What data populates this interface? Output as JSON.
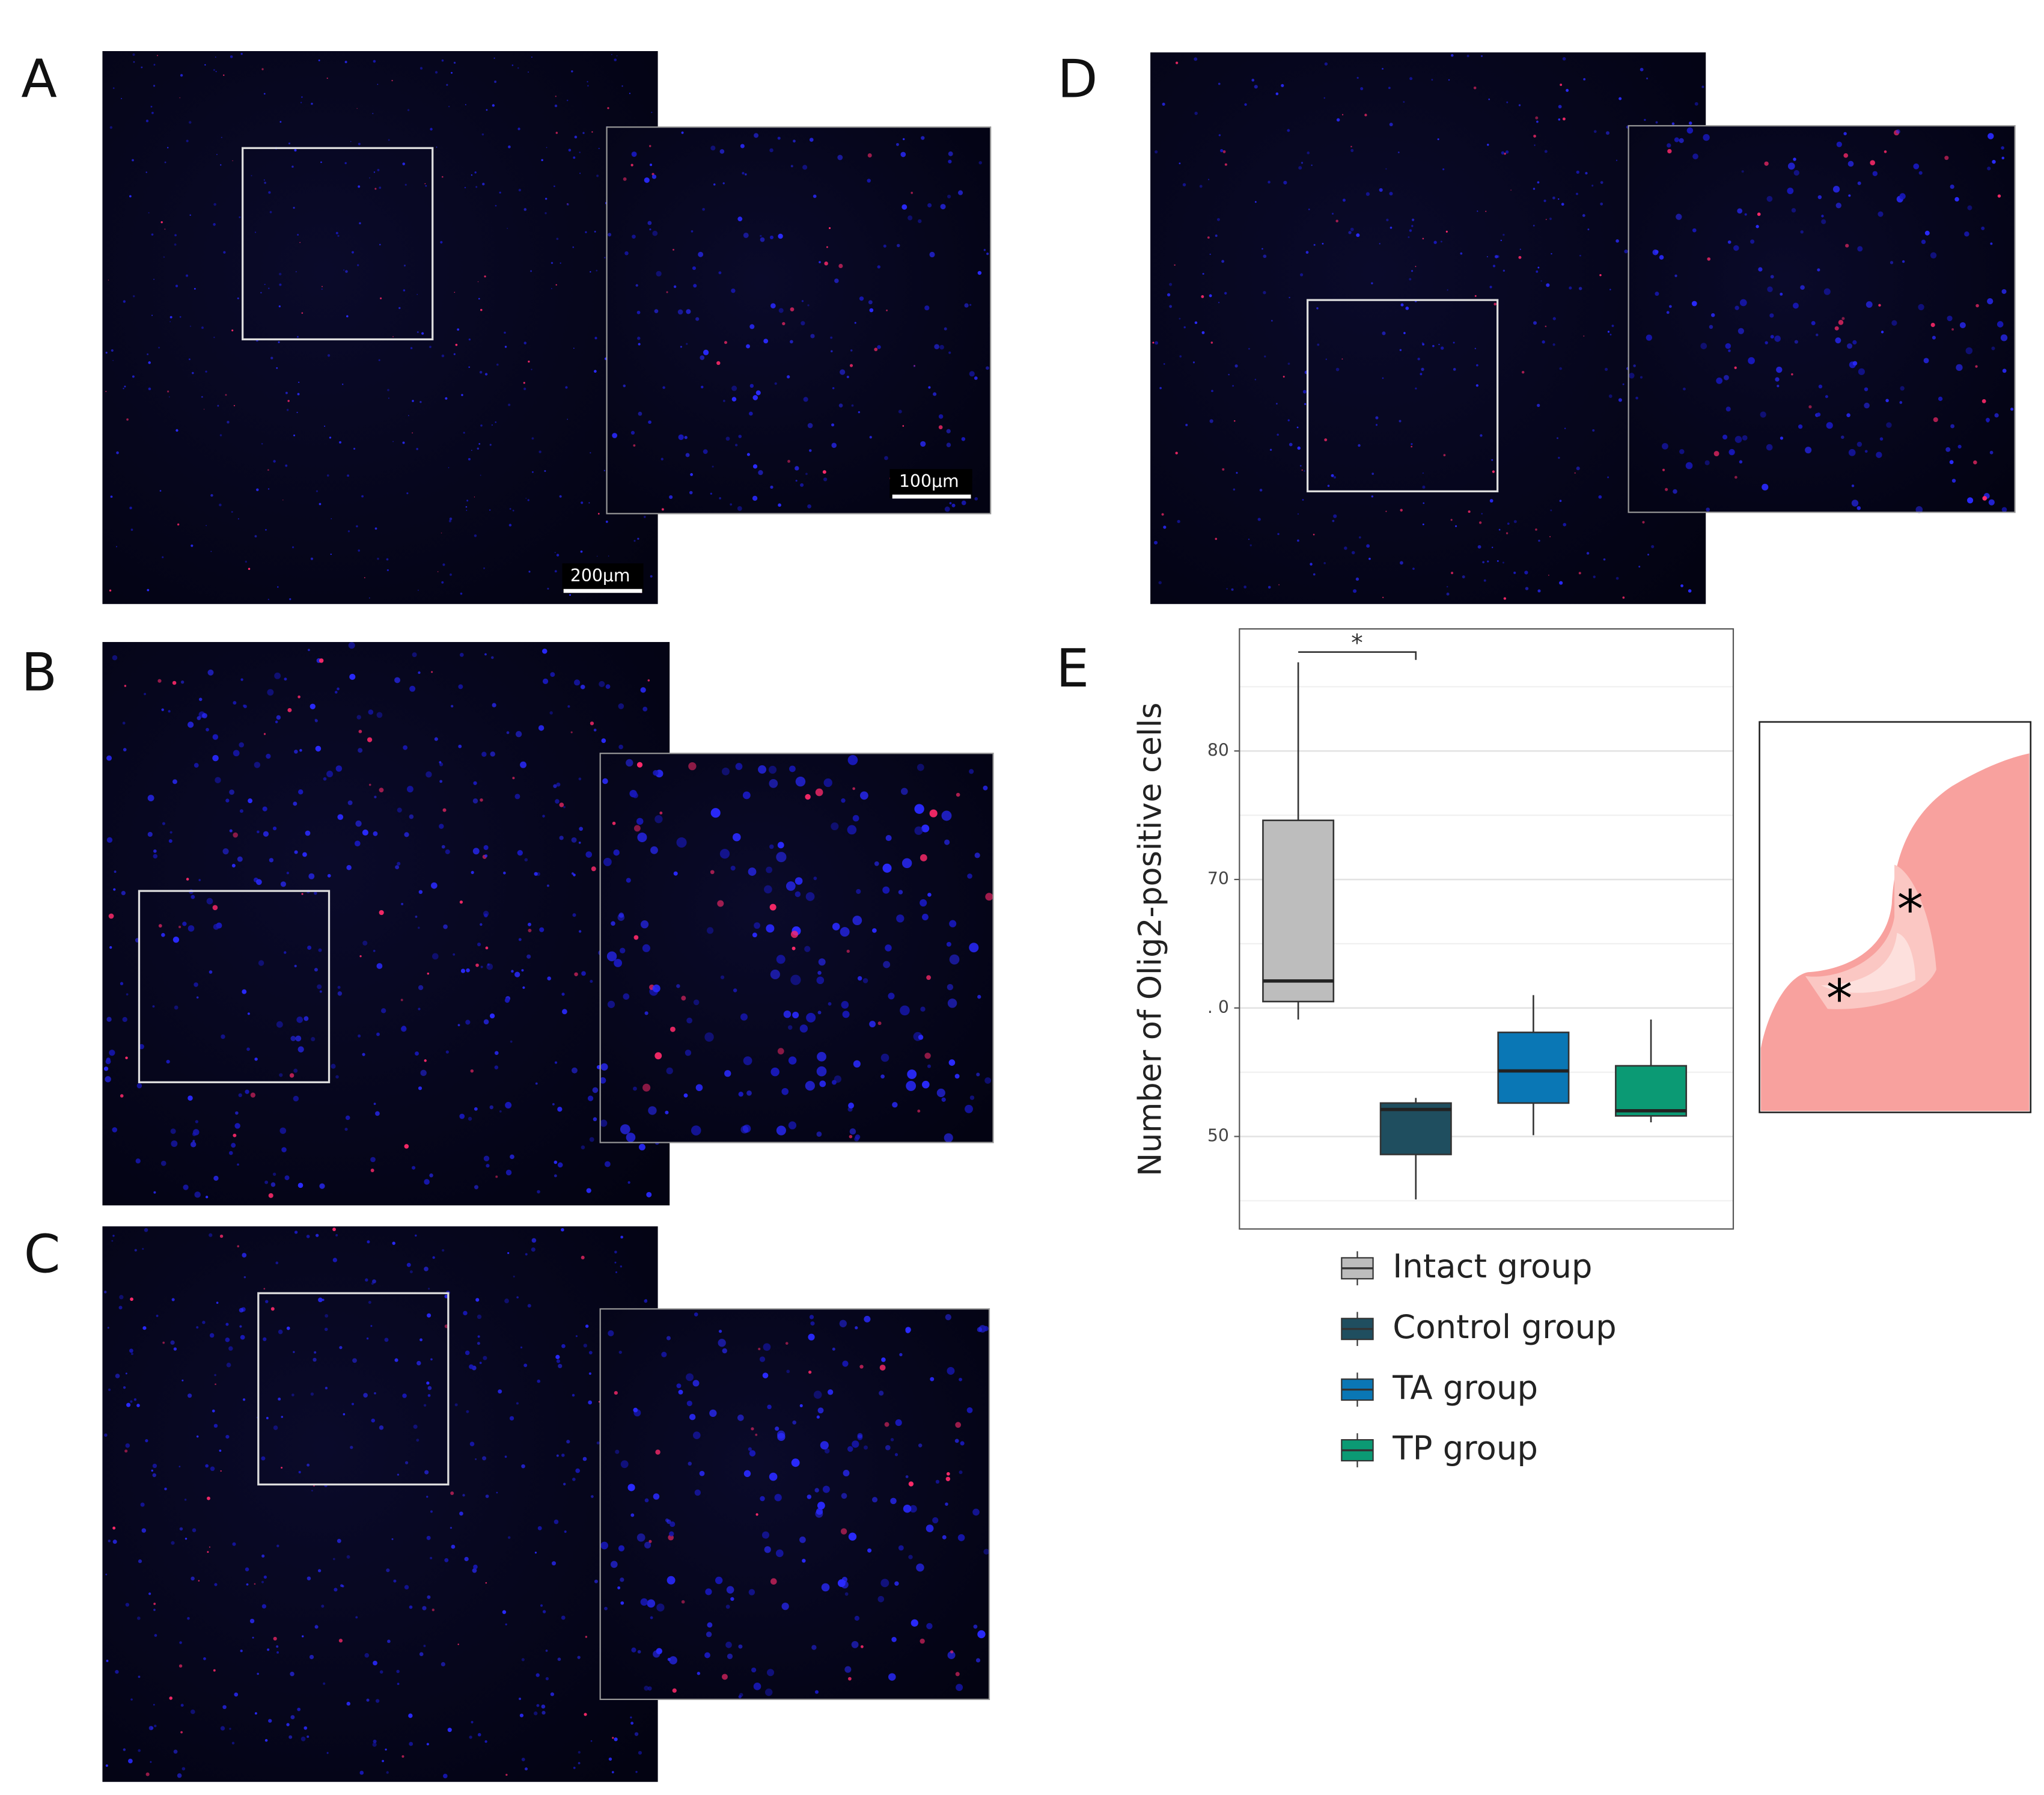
{
  "panel_labels": [
    "A",
    "B",
    "C",
    "D",
    "E"
  ],
  "scale_bars": [
    "200μm",
    "100μm"
  ],
  "schematic": {
    "markers": [
      "*",
      "*"
    ]
  },
  "chart_data": {
    "type": "box",
    "y_label": "Number of Olig2-positive cells",
    "ylim": [
      42.8,
      89.5
    ],
    "yticks": [
      50,
      {
        "value": 60,
        "label": ". 0"
      },
      70,
      80
    ],
    "minor_yticks": [
      45,
      55,
      65,
      75,
      85
    ],
    "grid": true,
    "series": [
      {
        "name": "Intact group",
        "color": "#bdbdbd",
        "min": 59.1,
        "q1": 60.5,
        "median": 62.1,
        "q3": 74.6,
        "max": 86.9
      },
      {
        "name": "Control group",
        "color": "#1f4e5f",
        "min": 45.1,
        "q1": 48.6,
        "median": 52.1,
        "q3": 52.6,
        "max": 53.0
      },
      {
        "name": "TA group",
        "color": "#0a77b5",
        "min": 50.1,
        "q1": 52.6,
        "median": 55.1,
        "q3": 58.1,
        "max": 61.0
      },
      {
        "name": "TP group",
        "color": "#0b9a74",
        "min": 51.1,
        "q1": 51.6,
        "median": 52.0,
        "q3": 55.5,
        "max": 59.1
      }
    ],
    "annotations": [
      {
        "text": "*",
        "from": 0,
        "to": 1,
        "y": 87.7
      }
    ]
  }
}
